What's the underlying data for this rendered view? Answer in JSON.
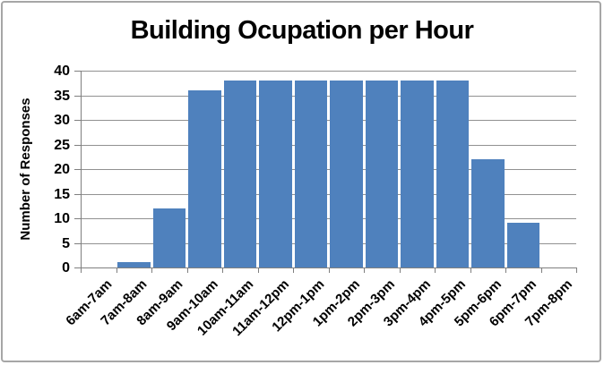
{
  "frame": {
    "border_color": "#A6A6A6",
    "background": "#FFFFFF"
  },
  "chart_data": {
    "type": "bar",
    "title": "Building Ocupation per Hour",
    "xlabel": "",
    "ylabel": "Number of Responses",
    "categories": [
      "6am-7am",
      "7am-8am",
      "8am-9am",
      "9am-10am",
      "10am-11am",
      "11am-12pm",
      "12pm-1pm",
      "1pm-2pm",
      "2pm-3pm",
      "3pm-4pm",
      "4pm-5pm",
      "5pm-6pm",
      "6pm-7pm",
      "7pm-8pm"
    ],
    "values": [
      0,
      1,
      12,
      36,
      38,
      38,
      38,
      38,
      38,
      38,
      38,
      22,
      9,
      0
    ],
    "ylim": [
      0,
      40
    ],
    "yticks": [
      0,
      5,
      10,
      15,
      20,
      25,
      30,
      35,
      40
    ],
    "grid": "horizontal-only",
    "legend": "none",
    "bar_color": "#4F81BD",
    "gridline_color": "#919191",
    "axis_color": "#7F7F7F",
    "text_color": "#000000"
  }
}
